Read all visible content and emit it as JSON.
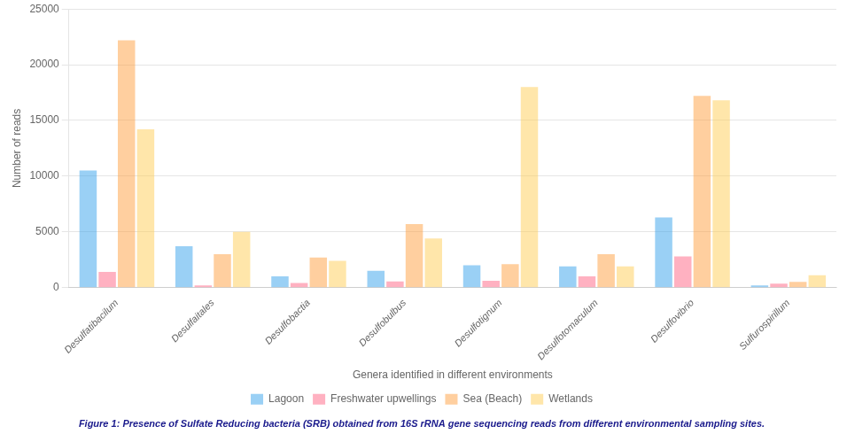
{
  "chart_data": {
    "type": "bar",
    "subtitle": "Figure 1: Presence of Sulfate Reducing bacteria (SRB) obtained from 16S rRNA gene sequencing reads from different environmental sampling sites.",
    "x_label": "Genera identified in different environments",
    "y_label": "Number of reads",
    "categories": [
      "Desulfatibacilum",
      "Desulfaitales",
      "Desulfobactia",
      "Desulfobulbus",
      "Desulfotignum",
      "Desulfotomaculum",
      "Desulfovibrio",
      "Sulfurospirillum"
    ],
    "series": [
      {
        "name": "Lagoon",
        "values": [
          10500,
          3700,
          1000,
          1500,
          2000,
          1900,
          6300,
          200
        ]
      },
      {
        "name": "Freshwater upwellings",
        "values": [
          1400,
          200,
          400,
          550,
          600,
          1000,
          2800,
          350
        ]
      },
      {
        "name": "Sea (Beach)",
        "values": [
          22200,
          3000,
          2700,
          5700,
          2100,
          3000,
          17200,
          500
        ]
      },
      {
        "name": "Wetlands",
        "values": [
          14200,
          5000,
          2400,
          4400,
          18000,
          1900,
          16800,
          1100
        ]
      }
    ],
    "ylim": [
      0,
      25000
    ],
    "yticks": [
      0,
      5000,
      10000,
      15000,
      20000,
      25000
    ],
    "grid": true,
    "legend": "bottom"
  }
}
